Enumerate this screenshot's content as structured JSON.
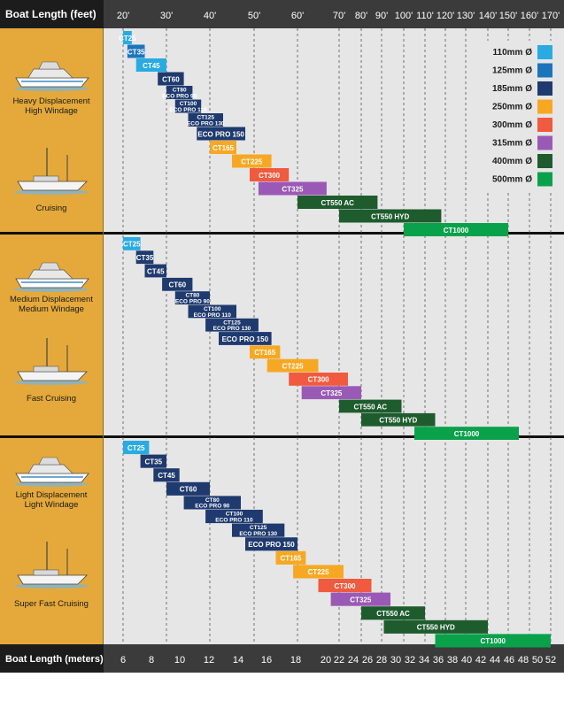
{
  "chart_data": {
    "type": "bar",
    "header_label": "Boat Length (feet)",
    "footer_label": "Boat Length (meters)",
    "feet_ticks": [
      "20'",
      "30'",
      "40'",
      "50'",
      "60'",
      "70'",
      "80'",
      "90'",
      "100'",
      "110'",
      "120'",
      "130'",
      "140'",
      "150'",
      "160'",
      "170'"
    ],
    "meter_ticks": [
      "6",
      "8",
      "10",
      "12",
      "14",
      "16",
      "18",
      "20",
      "22",
      "24",
      "26",
      "28",
      "30",
      "32",
      "34",
      "36",
      "38",
      "40",
      "42",
      "44",
      "46",
      "48",
      "50",
      "52"
    ],
    "colors": {
      "110mm": "#29abe2",
      "125mm": "#1b75bb",
      "185mm": "#1f3a6e",
      "250mm": "#f7a823",
      "300mm": "#f05a3e",
      "315mm": "#9b59b6",
      "400mm": "#1e5c2e",
      "500mm": "#0aa14b"
    },
    "legend": [
      {
        "label": "110mm Ø",
        "key": "110mm"
      },
      {
        "label": "125mm Ø",
        "key": "125mm"
      },
      {
        "label": "185mm Ø",
        "key": "185mm"
      },
      {
        "label": "250mm Ø",
        "key": "250mm"
      },
      {
        "label": "300mm Ø",
        "key": "300mm"
      },
      {
        "label": "315mm Ø",
        "key": "315mm"
      },
      {
        "label": "400mm Ø",
        "key": "400mm"
      },
      {
        "label": "500mm Ø",
        "key": "500mm"
      }
    ],
    "panels": [
      {
        "categories": [
          "Heavy Displacement\nHigh Windage",
          "Cruising"
        ],
        "bars": [
          {
            "label": "CT25",
            "size": "110mm",
            "from": 20,
            "to": 22
          },
          {
            "label": "CT35",
            "size": "125mm",
            "from": 21,
            "to": 25
          },
          {
            "label": "CT45",
            "size": "110mm",
            "from": 23,
            "to": 30
          },
          {
            "label": "CT60",
            "size": "185mm",
            "from": 28,
            "to": 34
          },
          {
            "label": "CT80\nECO PRO 90",
            "size": "185mm",
            "from": 30,
            "to": 36
          },
          {
            "label": "CT100\nECO PRO 110",
            "size": "185mm",
            "from": 32,
            "to": 38
          },
          {
            "label": "CT125\nECO PRO 130",
            "size": "185mm",
            "from": 35,
            "to": 43
          },
          {
            "label": "ECO PRO 150",
            "size": "185mm",
            "from": 37,
            "to": 48
          },
          {
            "label": "CT165",
            "size": "250mm",
            "from": 40,
            "to": 46
          },
          {
            "label": "CT225",
            "size": "250mm",
            "from": 45,
            "to": 54
          },
          {
            "label": "CT300",
            "size": "300mm",
            "from": 49,
            "to": 58
          },
          {
            "label": "CT325",
            "size": "315mm",
            "from": 51,
            "to": 67
          },
          {
            "label": "CT550 AC",
            "size": "400mm",
            "from": 60,
            "to": 88
          },
          {
            "label": "CT550 HYD",
            "size": "400mm",
            "from": 70,
            "to": 118
          },
          {
            "label": "CT1000",
            "size": "500mm",
            "from": 100,
            "to": 150
          }
        ]
      },
      {
        "categories": [
          "Medium Displacement\nMedium Windage",
          "Fast Cruising"
        ],
        "bars": [
          {
            "label": "CT25",
            "size": "110mm",
            "from": 20,
            "to": 24
          },
          {
            "label": "CT35",
            "size": "185mm",
            "from": 23,
            "to": 27
          },
          {
            "label": "CT45",
            "size": "185mm",
            "from": 25,
            "to": 30
          },
          {
            "label": "CT60",
            "size": "185mm",
            "from": 29,
            "to": 36
          },
          {
            "label": "CT80\nECO PRO 90",
            "size": "185mm",
            "from": 32,
            "to": 40
          },
          {
            "label": "CT100\nECO PRO 110",
            "size": "185mm",
            "from": 35,
            "to": 46
          },
          {
            "label": "CT125\nECO PRO 130",
            "size": "185mm",
            "from": 39,
            "to": 51
          },
          {
            "label": "ECO PRO 150",
            "size": "185mm",
            "from": 42,
            "to": 54
          },
          {
            "label": "CT165",
            "size": "250mm",
            "from": 49,
            "to": 56
          },
          {
            "label": "CT225",
            "size": "250mm",
            "from": 53,
            "to": 65
          },
          {
            "label": "CT300",
            "size": "300mm",
            "from": 58,
            "to": 74
          },
          {
            "label": "CT325",
            "size": "315mm",
            "from": 61,
            "to": 80
          },
          {
            "label": "CT550 AC",
            "size": "400mm",
            "from": 70,
            "to": 99
          },
          {
            "label": "CT550 HYD",
            "size": "400mm",
            "from": 80,
            "to": 115
          },
          {
            "label": "CT1000",
            "size": "500mm",
            "from": 105,
            "to": 155
          }
        ]
      },
      {
        "categories": [
          "Light Displacement\nLight Windage",
          "Super Fast Cruising"
        ],
        "bars": [
          {
            "label": "CT25",
            "size": "110mm",
            "from": 20,
            "to": 26
          },
          {
            "label": "CT35",
            "size": "185mm",
            "from": 24,
            "to": 30
          },
          {
            "label": "CT45",
            "size": "185mm",
            "from": 27,
            "to": 33
          },
          {
            "label": "CT60",
            "size": "185mm",
            "from": 30,
            "to": 40
          },
          {
            "label": "CT80\nECO PRO 90",
            "size": "185mm",
            "from": 34,
            "to": 47
          },
          {
            "label": "CT100\nECO PRO 110",
            "size": "185mm",
            "from": 39,
            "to": 52
          },
          {
            "label": "CT125\nECO PRO 130",
            "size": "185mm",
            "from": 45,
            "to": 57
          },
          {
            "label": "ECO PRO 150",
            "size": "185mm",
            "from": 48,
            "to": 60
          },
          {
            "label": "CT165",
            "size": "250mm",
            "from": 55,
            "to": 62
          },
          {
            "label": "CT225",
            "size": "250mm",
            "from": 59,
            "to": 72
          },
          {
            "label": "CT300",
            "size": "300mm",
            "from": 65,
            "to": 85
          },
          {
            "label": "CT325",
            "size": "315mm",
            "from": 68,
            "to": 94
          },
          {
            "label": "CT550 AC",
            "size": "400mm",
            "from": 80,
            "to": 110
          },
          {
            "label": "CT550 HYD",
            "size": "400mm",
            "from": 91,
            "to": 140
          },
          {
            "label": "CT1000",
            "size": "500mm",
            "from": 115,
            "to": 170
          }
        ]
      }
    ]
  }
}
